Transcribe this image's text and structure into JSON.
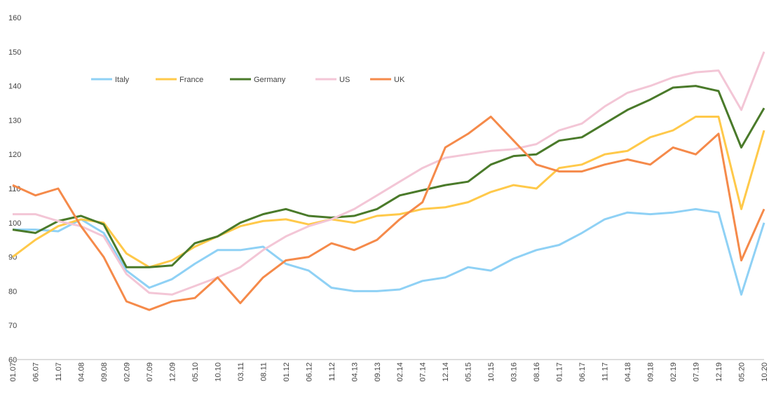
{
  "chart_data": {
    "type": "line",
    "categories": [
      "01.07",
      "06.07",
      "11.07",
      "04.08",
      "09.08",
      "02.09",
      "07.09",
      "12.09",
      "05.10",
      "10.10",
      "03.11",
      "08.11",
      "01.12",
      "06.12",
      "11.12",
      "04.13",
      "09.13",
      "02.14",
      "07.14",
      "12.14",
      "05.15",
      "10.15",
      "03.16",
      "08.16",
      "01.17",
      "06.17",
      "11.17",
      "04.18",
      "09.18",
      "02.19",
      "07.19",
      "12.19",
      "05.20",
      "10.20"
    ],
    "series": [
      {
        "name": "Italy",
        "color": "#8fd1f5",
        "values": [
          98,
          98,
          97.5,
          101,
          97,
          86,
          81,
          83.5,
          88,
          92,
          92,
          93,
          88,
          86,
          81,
          80,
          80,
          80.5,
          83,
          84,
          87,
          86,
          89.5,
          92,
          93.5,
          97,
          101,
          103,
          102.5,
          103,
          104,
          103,
          79,
          100
        ]
      },
      {
        "name": "France",
        "color": "#ffc94a",
        "values": [
          90,
          95,
          99,
          101,
          100,
          91,
          87,
          89,
          93,
          96,
          99,
          100.5,
          101,
          99.5,
          101,
          100,
          102,
          102.5,
          104,
          104.5,
          106,
          109,
          111,
          110,
          116,
          117,
          120,
          121,
          125,
          127,
          131,
          131,
          104,
          127
        ]
      },
      {
        "name": "Germany",
        "color": "#4a7a2a",
        "values": [
          98,
          97,
          100.5,
          102,
          99.5,
          87,
          87,
          87.5,
          94,
          96,
          100,
          102.5,
          104,
          102,
          101.5,
          102,
          104,
          108,
          109.5,
          111,
          112,
          117,
          119.5,
          120,
          124,
          125,
          129,
          133,
          136,
          139.5,
          140,
          138.5,
          122,
          133.5
        ]
      },
      {
        "name": "US",
        "color": "#f3c6d6",
        "values": [
          102.5,
          102.5,
          100.5,
          99,
          96,
          85,
          79.5,
          79,
          81.5,
          84,
          87,
          92,
          96,
          99,
          101,
          104,
          108,
          112,
          116,
          119,
          120,
          121,
          121.5,
          123,
          127,
          129,
          134,
          138,
          140,
          142.5,
          144,
          144.5,
          133,
          150
        ]
      },
      {
        "name": "UK",
        "color": "#f58a4a",
        "values": [
          111,
          108,
          110,
          99,
          90,
          77,
          74.5,
          77,
          78,
          84,
          76.5,
          84,
          89,
          90,
          94,
          92,
          95,
          101,
          106,
          122,
          126,
          131,
          124,
          117,
          115,
          115,
          117,
          118.5,
          117,
          122,
          120,
          126,
          89,
          104
        ]
      }
    ],
    "ylim": [
      60,
      160
    ],
    "yticks": [
      60,
      70,
      80,
      90,
      100,
      110,
      120,
      130,
      140,
      150,
      160
    ],
    "grid": false
  }
}
